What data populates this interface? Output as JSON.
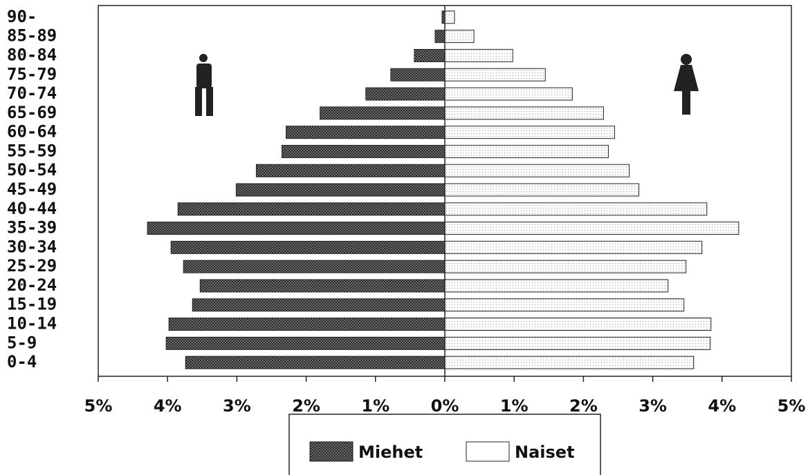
{
  "chart_data": {
    "type": "pyramid",
    "categories": [
      "90-",
      "85-89",
      "80-84",
      "75-79",
      "70-74",
      "65-69",
      "60-64",
      "55-59",
      "50-54",
      "45-49",
      "40-44",
      "35-39",
      "30-34",
      "25-29",
      "20-24",
      "15-19",
      "10-14",
      "5-9",
      "0-4"
    ],
    "series": [
      {
        "name": "Miehet",
        "color": "#555555",
        "values": [
          -0.04,
          -0.14,
          -0.44,
          -0.78,
          -1.14,
          -1.8,
          -2.29,
          -2.35,
          -2.72,
          -3.01,
          -3.85,
          -4.29,
          -3.95,
          -3.77,
          -3.53,
          -3.64,
          -3.98,
          -4.02,
          -3.74
        ]
      },
      {
        "name": "Naiset",
        "color": "#dddddd",
        "values": [
          0.14,
          0.42,
          0.98,
          1.45,
          1.84,
          2.29,
          2.45,
          2.36,
          2.66,
          2.8,
          3.78,
          4.24,
          3.71,
          3.48,
          3.22,
          3.45,
          3.84,
          3.83,
          3.59
        ]
      }
    ],
    "xlim": [
      -5,
      5
    ],
    "xticks": [
      {
        "value": -5,
        "label": "5%"
      },
      {
        "value": -4,
        "label": "4%"
      },
      {
        "value": -3,
        "label": "3%"
      },
      {
        "value": -2,
        "label": "2%"
      },
      {
        "value": -1,
        "label": "1%"
      },
      {
        "value": 0,
        "label": "0%"
      },
      {
        "value": 1,
        "label": "1%"
      },
      {
        "value": 2,
        "label": "2%"
      },
      {
        "value": 3,
        "label": "3%"
      },
      {
        "value": 4,
        "label": "4%"
      },
      {
        "value": 5,
        "label": "5%"
      }
    ]
  }
}
